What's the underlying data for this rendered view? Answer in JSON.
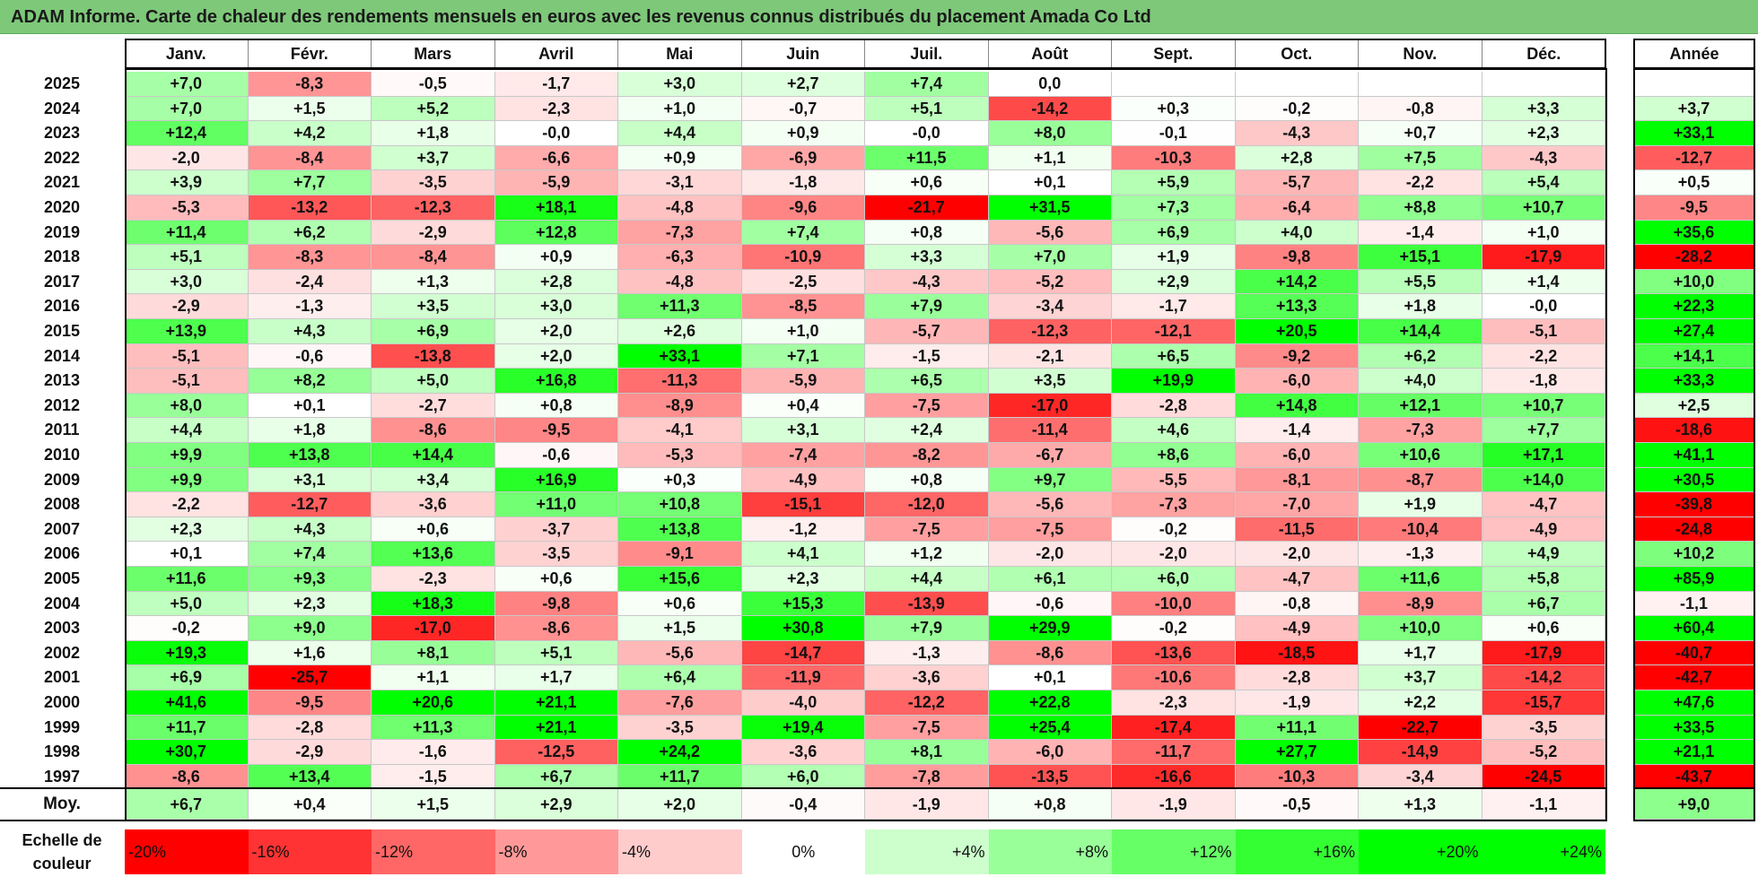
{
  "title": "ADAM Informe. Carte de chaleur des rendements mensuels en euros avec les revenus connus distribués du placement Amada Co Ltd",
  "chart_data": {
    "type": "heatmap",
    "title": "ADAM Informe. Carte de chaleur des rendements mensuels en euros avec les revenus connus distribués du placement Amada Co Ltd",
    "months": [
      "Janv.",
      "Févr.",
      "Mars",
      "Avril",
      "Mai",
      "Juin",
      "Juil.",
      "Août",
      "Sept.",
      "Oct.",
      "Nov.",
      "Déc."
    ],
    "year_header": "Année",
    "rows": [
      {
        "year": "2025",
        "values": [
          "+7,0",
          "-8,3",
          "-0,5",
          "-1,7",
          "+3,0",
          "+2,7",
          "+7,4",
          "0,0",
          "",
          "",
          "",
          ""
        ],
        "annual": ""
      },
      {
        "year": "2024",
        "values": [
          "+7,0",
          "+1,5",
          "+5,2",
          "-2,3",
          "+1,0",
          "-0,7",
          "+5,1",
          "-14,2",
          "+0,3",
          "-0,2",
          "-0,8",
          "+3,3"
        ],
        "annual": "+3,7"
      },
      {
        "year": "2023",
        "values": [
          "+12,4",
          "+4,2",
          "+1,8",
          "-0,0",
          "+4,4",
          "+0,9",
          "-0,0",
          "+8,0",
          "-0,1",
          "-4,3",
          "+0,7",
          "+2,3"
        ],
        "annual": "+33,1"
      },
      {
        "year": "2022",
        "values": [
          "-2,0",
          "-8,4",
          "+3,7",
          "-6,6",
          "+0,9",
          "-6,9",
          "+11,5",
          "+1,1",
          "-10,3",
          "+2,8",
          "+7,5",
          "-4,3"
        ],
        "annual": "-12,7"
      },
      {
        "year": "2021",
        "values": [
          "+3,9",
          "+7,7",
          "-3,5",
          "-5,9",
          "-3,1",
          "-1,8",
          "+0,6",
          "+0,1",
          "+5,9",
          "-5,7",
          "-2,2",
          "+5,4"
        ],
        "annual": "+0,5"
      },
      {
        "year": "2020",
        "values": [
          "-5,3",
          "-13,2",
          "-12,3",
          "+18,1",
          "-4,8",
          "-9,6",
          "-21,7",
          "+31,5",
          "+7,3",
          "-6,4",
          "+8,8",
          "+10,7"
        ],
        "annual": "-9,5"
      },
      {
        "year": "2019",
        "values": [
          "+11,4",
          "+6,2",
          "-2,9",
          "+12,8",
          "-7,3",
          "+7,4",
          "+0,8",
          "-5,6",
          "+6,9",
          "+4,0",
          "-1,4",
          "+1,0"
        ],
        "annual": "+35,6"
      },
      {
        "year": "2018",
        "values": [
          "+5,1",
          "-8,3",
          "-8,4",
          "+0,9",
          "-6,3",
          "-10,9",
          "+3,3",
          "+7,0",
          "+1,9",
          "-9,8",
          "+15,1",
          "-17,9"
        ],
        "annual": "-28,2"
      },
      {
        "year": "2017",
        "values": [
          "+3,0",
          "-2,4",
          "+1,3",
          "+2,8",
          "-4,8",
          "-2,5",
          "-4,3",
          "-5,2",
          "+2,9",
          "+14,2",
          "+5,5",
          "+1,4"
        ],
        "annual": "+10,0"
      },
      {
        "year": "2016",
        "values": [
          "-2,9",
          "-1,3",
          "+3,5",
          "+3,0",
          "+11,3",
          "-8,5",
          "+7,9",
          "-3,4",
          "-1,7",
          "+13,3",
          "+1,8",
          "-0,0"
        ],
        "annual": "+22,3"
      },
      {
        "year": "2015",
        "values": [
          "+13,9",
          "+4,3",
          "+6,9",
          "+2,0",
          "+2,6",
          "+1,0",
          "-5,7",
          "-12,3",
          "-12,1",
          "+20,5",
          "+14,4",
          "-5,1"
        ],
        "annual": "+27,4"
      },
      {
        "year": "2014",
        "values": [
          "-5,1",
          "-0,6",
          "-13,8",
          "+2,0",
          "+33,1",
          "+7,1",
          "-1,5",
          "-2,1",
          "+6,5",
          "-9,2",
          "+6,2",
          "-2,2"
        ],
        "annual": "+14,1"
      },
      {
        "year": "2013",
        "values": [
          "-5,1",
          "+8,2",
          "+5,0",
          "+16,8",
          "-11,3",
          "-5,9",
          "+6,5",
          "+3,5",
          "+19,9",
          "-6,0",
          "+4,0",
          "-1,8"
        ],
        "annual": "+33,3"
      },
      {
        "year": "2012",
        "values": [
          "+8,0",
          "+0,1",
          "-2,7",
          "+0,8",
          "-8,9",
          "+0,4",
          "-7,5",
          "-17,0",
          "-2,8",
          "+14,8",
          "+12,1",
          "+10,7"
        ],
        "annual": "+2,5"
      },
      {
        "year": "2011",
        "values": [
          "+4,4",
          "+1,8",
          "-8,6",
          "-9,5",
          "-4,1",
          "+3,1",
          "+2,4",
          "-11,4",
          "+4,6",
          "-1,4",
          "-7,3",
          "+7,7"
        ],
        "annual": "-18,6"
      },
      {
        "year": "2010",
        "values": [
          "+9,9",
          "+13,8",
          "+14,4",
          "-0,6",
          "-5,3",
          "-7,4",
          "-8,2",
          "-6,7",
          "+8,6",
          "-6,0",
          "+10,6",
          "+17,1"
        ],
        "annual": "+41,1"
      },
      {
        "year": "2009",
        "values": [
          "+9,9",
          "+3,1",
          "+3,4",
          "+16,9",
          "+0,3",
          "-4,9",
          "+0,8",
          "+9,7",
          "-5,5",
          "-8,1",
          "-8,7",
          "+14,0"
        ],
        "annual": "+30,5"
      },
      {
        "year": "2008",
        "values": [
          "-2,2",
          "-12,7",
          "-3,6",
          "+11,0",
          "+10,8",
          "-15,1",
          "-12,0",
          "-5,6",
          "-7,3",
          "-7,0",
          "+1,9",
          "-4,7"
        ],
        "annual": "-39,8"
      },
      {
        "year": "2007",
        "values": [
          "+2,3",
          "+4,3",
          "+0,6",
          "-3,7",
          "+13,8",
          "-1,2",
          "-7,5",
          "-7,5",
          "-0,2",
          "-11,5",
          "-10,4",
          "-4,9"
        ],
        "annual": "-24,8"
      },
      {
        "year": "2006",
        "values": [
          "+0,1",
          "+7,4",
          "+13,6",
          "-3,5",
          "-9,1",
          "+4,1",
          "+1,2",
          "-2,0",
          "-2,0",
          "-2,0",
          "-1,3",
          "+4,9"
        ],
        "annual": "+10,2"
      },
      {
        "year": "2005",
        "values": [
          "+11,6",
          "+9,3",
          "-2,3",
          "+0,6",
          "+15,6",
          "+2,3",
          "+4,4",
          "+6,1",
          "+6,0",
          "-4,7",
          "+11,6",
          "+5,8"
        ],
        "annual": "+85,9"
      },
      {
        "year": "2004",
        "values": [
          "+5,0",
          "+2,3",
          "+18,3",
          "-9,8",
          "+0,6",
          "+15,3",
          "-13,9",
          "-0,6",
          "-10,0",
          "-0,8",
          "-8,9",
          "+6,7"
        ],
        "annual": "-1,1"
      },
      {
        "year": "2003",
        "values": [
          "-0,2",
          "+9,0",
          "-17,0",
          "-8,6",
          "+1,5",
          "+30,8",
          "+7,9",
          "+29,9",
          "-0,2",
          "-4,9",
          "+10,0",
          "+0,6"
        ],
        "annual": "+60,4"
      },
      {
        "year": "2002",
        "values": [
          "+19,3",
          "+1,6",
          "+8,1",
          "+5,1",
          "-5,6",
          "-14,7",
          "-1,3",
          "-8,6",
          "-13,6",
          "-18,5",
          "+1,7",
          "-17,9"
        ],
        "annual": "-40,7"
      },
      {
        "year": "2001",
        "values": [
          "+6,9",
          "-25,7",
          "+1,1",
          "+1,7",
          "+6,4",
          "-11,9",
          "-3,6",
          "+0,1",
          "-10,6",
          "-2,8",
          "+3,7",
          "-14,2"
        ],
        "annual": "-42,7"
      },
      {
        "year": "2000",
        "values": [
          "+41,6",
          "-9,5",
          "+20,6",
          "+21,1",
          "-7,6",
          "-4,0",
          "-12,2",
          "+22,8",
          "-2,3",
          "-1,9",
          "+2,2",
          "-15,7"
        ],
        "annual": "+47,6"
      },
      {
        "year": "1999",
        "values": [
          "+11,7",
          "-2,8",
          "+11,3",
          "+21,1",
          "-3,5",
          "+19,4",
          "-7,5",
          "+25,4",
          "-17,4",
          "+11,1",
          "-22,7",
          "-3,5"
        ],
        "annual": "+33,5"
      },
      {
        "year": "1998",
        "values": [
          "+30,7",
          "-2,9",
          "-1,6",
          "-12,5",
          "+24,2",
          "-3,6",
          "+8,1",
          "-6,0",
          "-11,7",
          "+27,7",
          "-14,9",
          "-5,2"
        ],
        "annual": "+21,1"
      },
      {
        "year": "1997",
        "values": [
          "-8,6",
          "+13,4",
          "-1,5",
          "+6,7",
          "+11,7",
          "+6,0",
          "-7,8",
          "-13,5",
          "-16,6",
          "-10,3",
          "-3,4",
          "-24,5"
        ],
        "annual": "-43,7"
      }
    ],
    "average": {
      "label": "Moy.",
      "values": [
        "+6,7",
        "+0,4",
        "+1,5",
        "+2,9",
        "+2,0",
        "-0,4",
        "-1,9",
        "+0,8",
        "-1,9",
        "-0,5",
        "+1,3",
        "-1,1"
      ],
      "annual": "+9,0"
    },
    "color_scale": {
      "label": "Echelle de\ncouleur",
      "steps": [
        "-20%",
        "-16%",
        "-12%",
        "-8%",
        "-4%",
        "0%",
        "+4%",
        "+8%",
        "+12%",
        "+16%",
        "+20%",
        "+24%"
      ]
    }
  }
}
